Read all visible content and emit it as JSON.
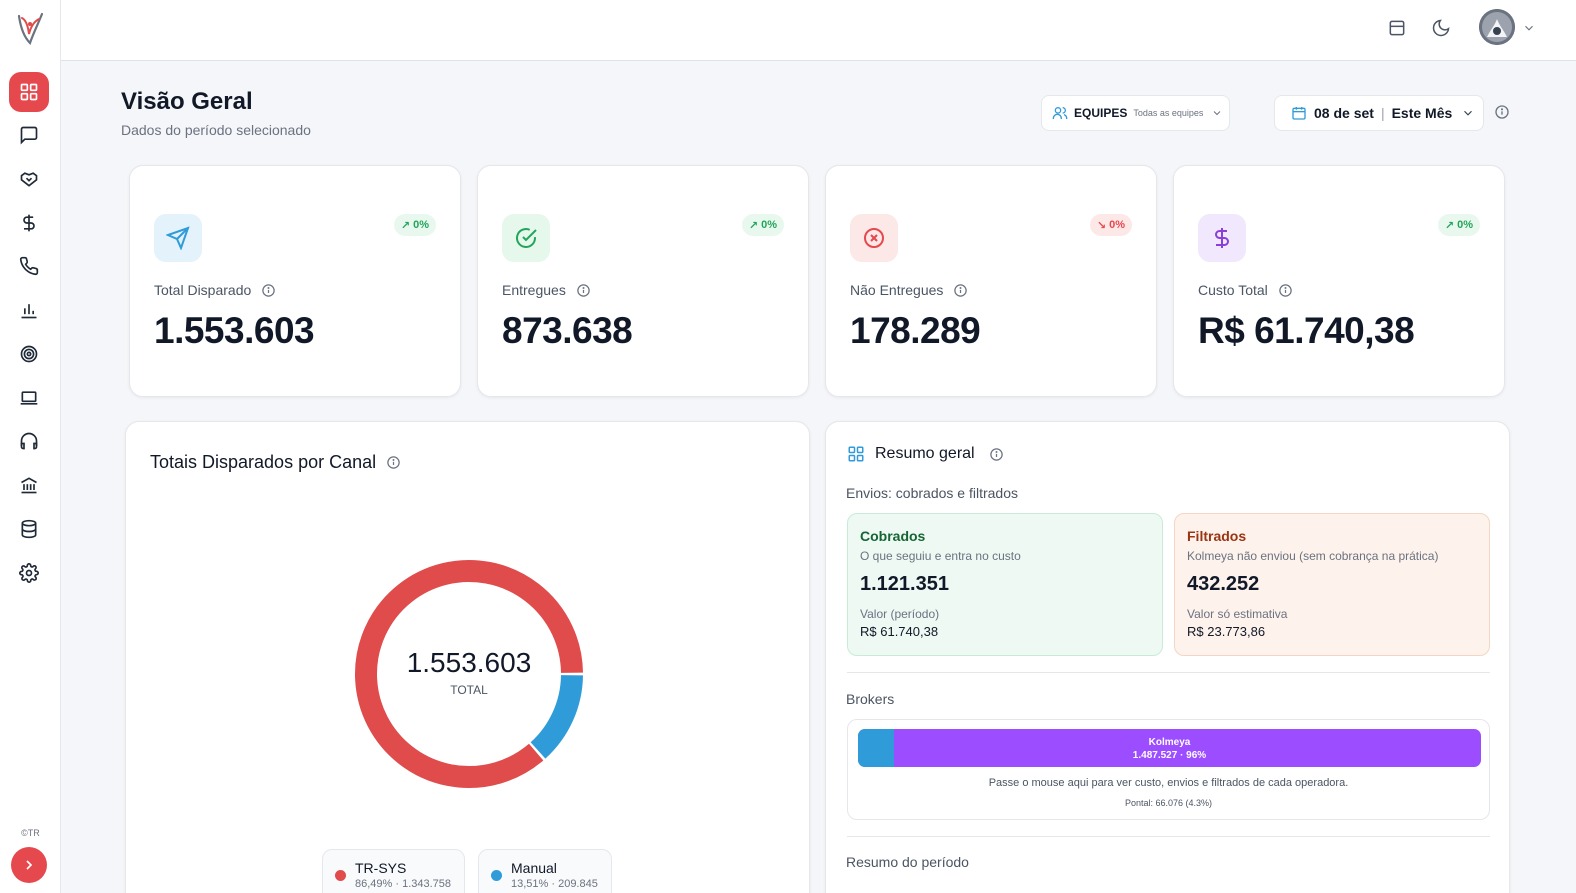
{
  "header": {
    "title": "Visão Geral",
    "subtitle": "Dados do período selecionado",
    "teams_label": "EQUIPES",
    "teams_value": "Todas as equipes",
    "date_value": "08 de set",
    "period_value": "Este Mês"
  },
  "sidebar": {
    "items": [
      {
        "icon": "dashboard-icon",
        "active": true
      },
      {
        "icon": "chat-icon"
      },
      {
        "icon": "handshake-icon"
      },
      {
        "icon": "dollar-icon"
      },
      {
        "icon": "phone-icon"
      },
      {
        "icon": "bar-chart-icon"
      },
      {
        "icon": "target-icon"
      },
      {
        "icon": "laptop-icon"
      },
      {
        "icon": "headphones-icon"
      },
      {
        "icon": "bank-icon"
      },
      {
        "icon": "database-icon"
      },
      {
        "icon": "settings-icon"
      }
    ],
    "copyright": "©TR"
  },
  "stats": [
    {
      "label": "Total Disparado",
      "value": "1.553.603",
      "trend": "0%",
      "trend_dir": "up",
      "icon": "send-icon"
    },
    {
      "label": "Entregues",
      "value": "873.638",
      "trend": "0%",
      "trend_dir": "up",
      "icon": "check-circle-icon"
    },
    {
      "label": "Não Entregues",
      "value": "178.289",
      "trend": "0%",
      "trend_dir": "down",
      "icon": "x-circle-icon"
    },
    {
      "label": "Custo Total",
      "value": "R$ 61.740,38",
      "trend": "0%",
      "trend_dir": "up",
      "icon": "dollar-icon"
    }
  ],
  "channels": {
    "title": "Totais Disparados por Canal",
    "total": "1.553.603",
    "total_label": "TOTAL",
    "legend": [
      {
        "name": "TR-SYS",
        "detail": "86,49% · 1.343.758"
      },
      {
        "name": "Manual",
        "detail": "13,51% · 209.845"
      }
    ]
  },
  "chart_data": {
    "type": "pie",
    "categories": [
      "TR-SYS",
      "Manual"
    ],
    "values": [
      1343758,
      209845
    ],
    "percentages": [
      86.49,
      13.51
    ],
    "colors": [
      "#e04b4b",
      "#2f9cd9"
    ],
    "title": "Totais Disparados por Canal"
  },
  "summary": {
    "title": "Resumo geral",
    "envios_label": "Envios: cobrados e filtrados",
    "cobrados": {
      "title": "Cobrados",
      "desc": "O que seguiu e entra no custo",
      "value": "1.121.351",
      "value_label": "Valor (período)",
      "value_amount": "R$ 61.740,38"
    },
    "filtrados": {
      "title": "Filtrados",
      "desc": "Kolmeya não enviou (sem cobrança na prática)",
      "value": "432.252",
      "value_label": "Valor só estimativa",
      "value_amount": "R$ 23.773,86"
    },
    "brokers_label": "Brokers",
    "broker_name": "Kolmeya",
    "broker_detail": "1.487.527 · 96%",
    "broker_share": 0.96,
    "broker_hint": "Passe o mouse aqui para ver custo, envios e filtrados de cada operadora.",
    "broker_sub": "Pontal: 66.076 (4.3%)",
    "period_label": "Resumo do período"
  }
}
